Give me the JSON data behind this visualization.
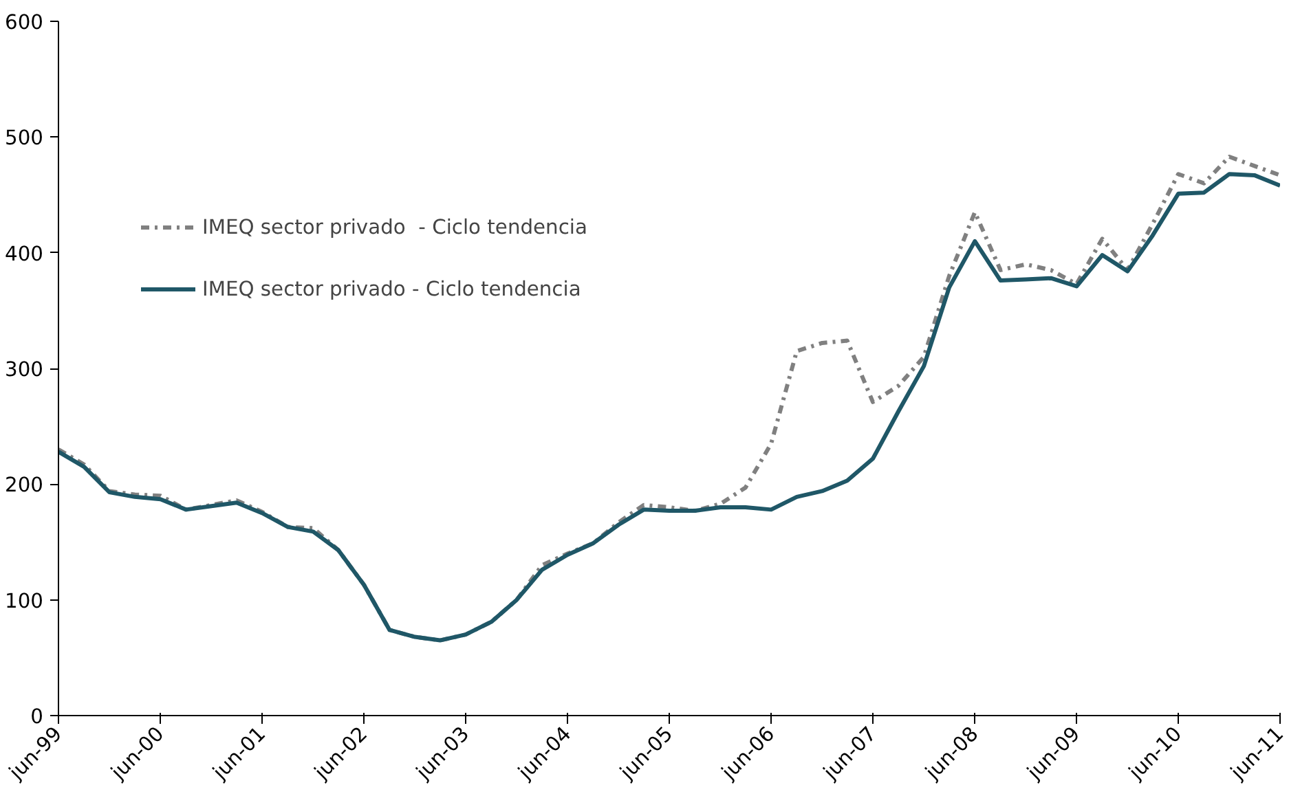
{
  "chart_data": {
    "type": "line",
    "x": [
      "1999-06",
      "1999-09",
      "1999-12",
      "2000-03",
      "2000-06",
      "2000-09",
      "2000-12",
      "2001-03",
      "2001-06",
      "2001-09",
      "2001-12",
      "2002-03",
      "2002-06",
      "2002-09",
      "2002-12",
      "2003-03",
      "2003-06",
      "2003-09",
      "2003-12",
      "2004-03",
      "2004-06",
      "2004-09",
      "2004-12",
      "2005-03",
      "2005-06",
      "2005-09",
      "2005-12",
      "2006-03",
      "2006-06",
      "2006-09",
      "2006-12",
      "2007-03",
      "2007-06",
      "2007-09",
      "2007-12",
      "2008-03",
      "2008-06",
      "2008-09",
      "2008-12",
      "2009-03",
      "2009-06",
      "2009-09",
      "2009-12",
      "2010-03",
      "2010-06",
      "2010-09",
      "2010-12",
      "2011-03",
      "2011-06"
    ],
    "series": [
      {
        "name": "IMEQ sector privado  - Ciclo tendencia",
        "color": "#808080",
        "line_style": "dashdot",
        "values": [
          230,
          217,
          194,
          191,
          190,
          178,
          182,
          186,
          176,
          163,
          162,
          143,
          113,
          74,
          68,
          65,
          70,
          81,
          100,
          130,
          140,
          149,
          167,
          182,
          180,
          177,
          183,
          197,
          235,
          315,
          322,
          324,
          271,
          285,
          310,
          380,
          435,
          385,
          390,
          385,
          373,
          412,
          385,
          425,
          468,
          460,
          483,
          475,
          467
        ]
      },
      {
        "name": "IMEQ sector privado - Ciclo tendencia",
        "color": "#1f5767",
        "line_style": "solid",
        "values": [
          228,
          215,
          193,
          189,
          187,
          178,
          181,
          184,
          175,
          163,
          159,
          143,
          113,
          74,
          68,
          65,
          70,
          81,
          100,
          126,
          139,
          149,
          165,
          178,
          177,
          177,
          180,
          180,
          178,
          189,
          194,
          203,
          222,
          263,
          302,
          370,
          410,
          376,
          377,
          378,
          371,
          398,
          384,
          415,
          451,
          452,
          468,
          467,
          458
        ]
      }
    ],
    "ylim": [
      0,
      600
    ],
    "yticks": [
      0,
      100,
      200,
      300,
      400,
      500,
      600
    ],
    "xlim": [
      "1999-06",
      "2011-06"
    ],
    "xticks": [
      {
        "value": "1999-06",
        "label": "jun-99"
      },
      {
        "value": "2000-06",
        "label": "jun-00"
      },
      {
        "value": "2001-06",
        "label": "jun-01"
      },
      {
        "value": "2002-06",
        "label": "jun-02"
      },
      {
        "value": "2003-06",
        "label": "jun-03"
      },
      {
        "value": "2004-06",
        "label": "jun-04"
      },
      {
        "value": "2005-06",
        "label": "jun-05"
      },
      {
        "value": "2006-06",
        "label": "jun-06"
      },
      {
        "value": "2007-06",
        "label": "jun-07"
      },
      {
        "value": "2008-06",
        "label": "jun-08"
      },
      {
        "value": "2009-06",
        "label": "jun-09"
      },
      {
        "value": "2010-06",
        "label": "jun-10"
      },
      {
        "value": "2011-06",
        "label": "jun-11"
      }
    ],
    "legend": "top left",
    "grid": false,
    "marker": "none"
  }
}
